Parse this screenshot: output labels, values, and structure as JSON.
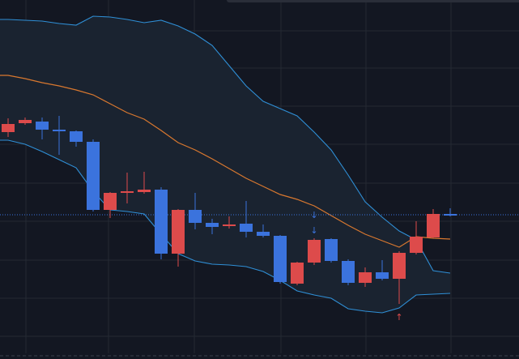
{
  "chart_data": {
    "type": "candlestick",
    "ylim": [
      0,
      443
    ],
    "grid": true,
    "colors": {
      "background": "#131722",
      "band_fill": "#1a2330",
      "grid": "#252a33",
      "up": "#dd4b4b",
      "down": "#3b73dd",
      "band_line": "#2f8fd6",
      "basis_line": "#d9782f",
      "last_price_line": "#3b73dd",
      "marker_down": "#3b73dd",
      "marker_up": "#dd4b4b"
    },
    "candles": [
      {
        "i": 0,
        "open": 280,
        "close": 290,
        "high": 297,
        "low": 274
      },
      {
        "i": 1,
        "open": 291,
        "close": 295,
        "high": 298,
        "low": 289
      },
      {
        "i": 2,
        "open": 293,
        "close": 283,
        "high": 298,
        "low": 271
      },
      {
        "i": 3,
        "open": 283,
        "close": 282,
        "high": 300,
        "low": 252
      },
      {
        "i": 4,
        "open": 281,
        "close": 268,
        "high": 282,
        "low": 262
      },
      {
        "i": 5,
        "open": 268,
        "close": 184,
        "high": 271,
        "low": 182
      },
      {
        "i": 6,
        "open": 184,
        "close": 205,
        "high": 206,
        "low": 174
      },
      {
        "i": 7,
        "open": 205,
        "close": 207,
        "high": 230,
        "low": 192
      },
      {
        "i": 8,
        "open": 206,
        "close": 209,
        "high": 231,
        "low": 204
      },
      {
        "i": 9,
        "open": 209,
        "close": 130,
        "high": 212,
        "low": 123
      },
      {
        "i": 10,
        "open": 130,
        "close": 184,
        "high": 185,
        "low": 114
      },
      {
        "i": 11,
        "open": 184,
        "close": 168,
        "high": 205,
        "low": 160
      },
      {
        "i": 12,
        "open": 168,
        "close": 163,
        "high": 173,
        "low": 154
      },
      {
        "i": 13,
        "open": 164,
        "close": 166,
        "high": 176,
        "low": 161
      },
      {
        "i": 14,
        "open": 167,
        "close": 157,
        "high": 195,
        "low": 150
      },
      {
        "i": 15,
        "open": 157,
        "close": 152,
        "high": 166,
        "low": 150
      },
      {
        "i": 16,
        "open": 152,
        "close": 95,
        "high": 153,
        "low": 93
      },
      {
        "i": 17,
        "open": 93,
        "close": 119,
        "high": 120,
        "low": 91
      },
      {
        "i": 18,
        "open": 119,
        "close": 147,
        "high": 149,
        "low": 116
      },
      {
        "i": 19,
        "open": 148,
        "close": 121,
        "high": 149,
        "low": 119
      },
      {
        "i": 20,
        "open": 121,
        "close": 94,
        "high": 123,
        "low": 91
      },
      {
        "i": 21,
        "open": 94,
        "close": 107,
        "high": 113,
        "low": 89
      },
      {
        "i": 22,
        "open": 107,
        "close": 99,
        "high": 122,
        "low": 97
      },
      {
        "i": 23,
        "open": 99,
        "close": 131,
        "high": 133,
        "low": 68
      },
      {
        "i": 24,
        "open": 131,
        "close": 151,
        "high": 170,
        "low": 129
      },
      {
        "i": 25,
        "open": 150,
        "close": 179,
        "high": 185,
        "low": 149
      },
      {
        "i": 26,
        "open": 179,
        "close": 178,
        "high": 186,
        "low": 176
      }
    ],
    "upper_band": [
      419,
      418,
      417,
      414,
      412,
      423,
      422,
      419,
      415,
      418,
      411,
      401,
      387,
      362,
      337,
      318,
      309,
      300,
      280,
      258,
      227,
      194,
      175,
      158,
      147,
      109,
      106
    ],
    "lower_band": [
      270,
      265,
      256,
      246,
      236,
      207,
      184,
      182,
      179,
      154,
      130,
      121,
      117,
      116,
      114,
      108,
      97,
      84,
      79,
      75,
      62,
      59,
      57,
      63,
      79,
      80,
      81
    ],
    "basis_line": [
      350,
      346,
      341,
      337,
      332,
      326,
      315,
      304,
      296,
      282,
      267,
      258,
      247,
      235,
      223,
      213,
      203,
      197,
      189,
      177,
      165,
      154,
      146,
      138,
      151,
      149,
      148
    ],
    "last_price_level": 178,
    "signals": [
      {
        "i": 18,
        "level": 178,
        "direction": "down"
      },
      {
        "i": 18,
        "level": 159,
        "direction": "down"
      },
      {
        "i": 23,
        "level": 52,
        "direction": "up"
      }
    ]
  }
}
